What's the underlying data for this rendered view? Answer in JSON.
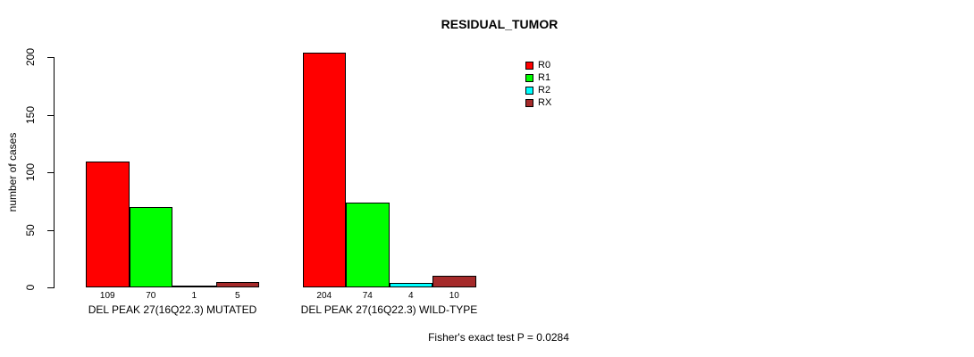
{
  "page": {
    "background_color": "#ffffff"
  },
  "chart_data": {
    "type": "bar",
    "title": "RESIDUAL_TUMOR",
    "xlabel": "",
    "ylabel": "number of cases",
    "footer": "Fisher's exact test P = 0.0284",
    "ylim": [
      0,
      200
    ],
    "yticks": [
      0,
      50,
      100,
      150,
      200
    ],
    "grid": false,
    "legend_position": "top-right-inside",
    "series": [
      {
        "name": "R0",
        "color": "#ff0000"
      },
      {
        "name": "R1",
        "color": "#00ff00"
      },
      {
        "name": "R2",
        "color": "#00ffff"
      },
      {
        "name": "RX",
        "color": "#a52a2a"
      }
    ],
    "groups": [
      {
        "label": "DEL PEAK 27(16Q22.3) MUTATED",
        "values": [
          109,
          70,
          1,
          5
        ]
      },
      {
        "label": "DEL PEAK 27(16Q22.3) WILD-TYPE",
        "values": [
          204,
          74,
          4,
          10
        ]
      }
    ]
  }
}
